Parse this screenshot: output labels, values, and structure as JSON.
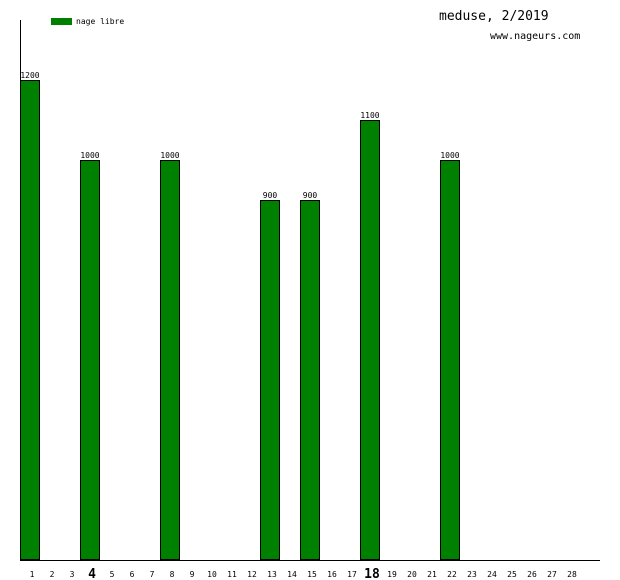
{
  "chart_data": {
    "type": "bar",
    "title": "meduse, 2/2019",
    "subtitle": "www.nageurs.com",
    "xlabel": "",
    "ylabel": "",
    "ylim": [
      0,
      1350
    ],
    "grid": false,
    "legend_position": "top-left",
    "categories": [
      "1",
      "2",
      "3",
      "4",
      "5",
      "6",
      "7",
      "8",
      "9",
      "10",
      "11",
      "12",
      "13",
      "14",
      "15",
      "16",
      "17",
      "18",
      "19",
      "20",
      "21",
      "22",
      "23",
      "24",
      "25",
      "26",
      "27",
      "28"
    ],
    "highlighted_categories": [
      "4",
      "18"
    ],
    "series": [
      {
        "name": "nage libre",
        "color": "#008000",
        "values": [
          1200,
          0,
          0,
          1000,
          0,
          0,
          0,
          1000,
          0,
          0,
          0,
          0,
          900,
          0,
          900,
          0,
          0,
          1100,
          0,
          0,
          0,
          1000,
          0,
          0,
          0,
          0,
          0,
          0
        ]
      }
    ]
  }
}
